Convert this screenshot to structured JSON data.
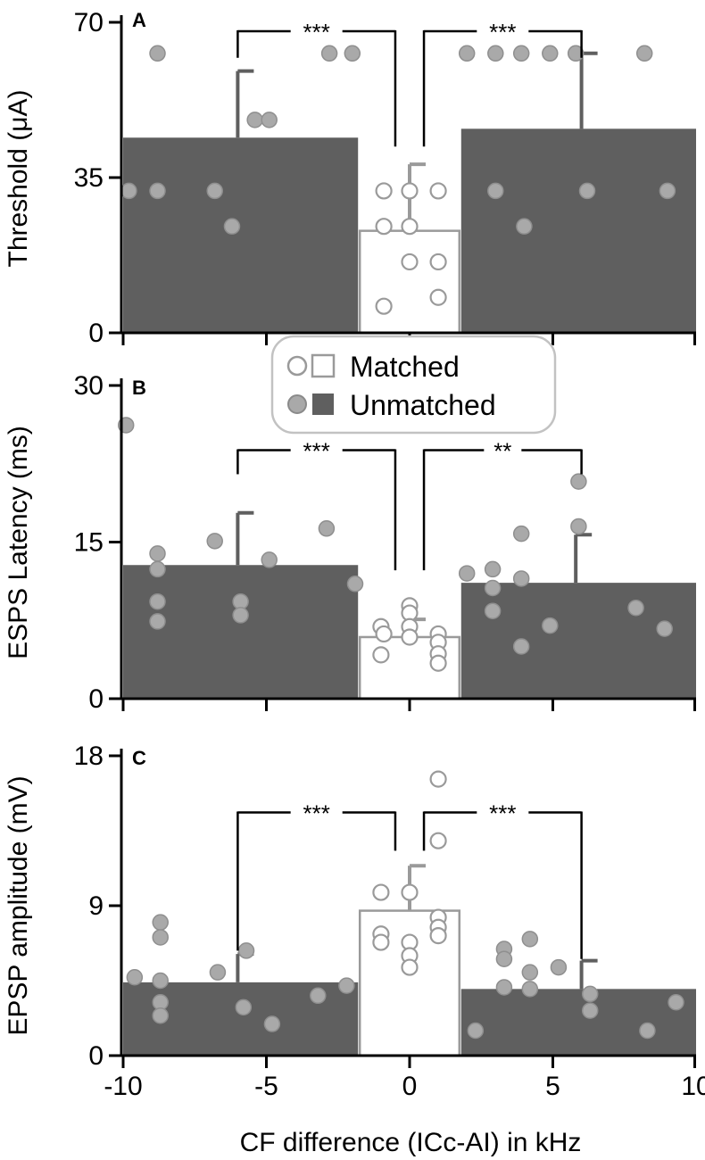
{
  "colors": {
    "unmatched_bar": "#5f5f5f",
    "unmatched_dot": "#a9a9a9",
    "matched_bar": "#ffffff",
    "matched_outline": "#9a9a9a",
    "axis": "#000000"
  },
  "legend": {
    "items": [
      {
        "label": "Matched",
        "style": "matched"
      },
      {
        "label": "Unmatched",
        "style": "unmatched"
      }
    ],
    "placement": "top-center (between panels A and B)"
  },
  "xaxis": {
    "label": "CF difference (ICc-AI) in kHz",
    "ticks": [
      -10,
      -5,
      0,
      5,
      10
    ],
    "tick_labels": [
      "-10",
      "-5",
      "0",
      "5",
      "10"
    ],
    "range": [
      -10,
      10
    ]
  },
  "chart_data": [
    {
      "panel": "A",
      "type": "bar",
      "ylabel": "Threshold (μA)",
      "ylim": [
        0,
        70
      ],
      "yticks": [
        0,
        35,
        70
      ],
      "ytick_labels": [
        "0",
        "35",
        "70"
      ],
      "bars": [
        {
          "group": "Unmatched",
          "x_from": -10,
          "x_to": -1.8,
          "mean": 44,
          "err_x": -6,
          "err_top": 59
        },
        {
          "group": "Matched",
          "x_from": -1.8,
          "x_to": 1.8,
          "mean": 23,
          "err_x": 0,
          "err_top": 38
        },
        {
          "group": "Unmatched",
          "x_from": 1.8,
          "x_to": 10,
          "mean": 46,
          "err_x": 6,
          "err_top": 63
        }
      ],
      "points": {
        "Unmatched": [
          [
            -8.8,
            63
          ],
          [
            -2.8,
            63
          ],
          [
            -2,
            63
          ],
          [
            -5.4,
            48
          ],
          [
            -4.9,
            48
          ],
          [
            -9.8,
            32
          ],
          [
            -8.8,
            32
          ],
          [
            -6.8,
            32
          ],
          [
            -6.2,
            24
          ],
          [
            2,
            63
          ],
          [
            3,
            63
          ],
          [
            3.9,
            63
          ],
          [
            4.9,
            63
          ],
          [
            5.8,
            63
          ],
          [
            8.2,
            63
          ],
          [
            3,
            32
          ],
          [
            4,
            24
          ],
          [
            6.2,
            32
          ],
          [
            9,
            32
          ]
        ],
        "Matched": [
          [
            -0.9,
            32
          ],
          [
            0,
            32
          ],
          [
            1,
            32
          ],
          [
            -0.9,
            24
          ],
          [
            0,
            24
          ],
          [
            0,
            16
          ],
          [
            1,
            16
          ],
          [
            -0.9,
            6
          ],
          [
            1,
            8
          ]
        ]
      },
      "significance": [
        {
          "label": "***",
          "x_left": -6,
          "x_right": -0.5,
          "y": 68,
          "y_left_end": 62,
          "y_right_end": 42
        },
        {
          "label": "***",
          "x_left": 0.5,
          "x_right": 6,
          "y": 68,
          "y_left_end": 42,
          "y_right_end": 62
        }
      ]
    },
    {
      "panel": "B",
      "type": "bar",
      "ylabel": "ESPS Latency (ms)",
      "ylim": [
        0,
        30
      ],
      "yticks": [
        0,
        15,
        30
      ],
      "ytick_labels": [
        "0",
        "15",
        "30"
      ],
      "bars": [
        {
          "group": "Unmatched",
          "x_from": -10,
          "x_to": -1.8,
          "mean": 12.8,
          "err_x": -6,
          "err_top": 17.8
        },
        {
          "group": "Matched",
          "x_from": -1.8,
          "x_to": 1.8,
          "mean": 5.9,
          "err_x": 0,
          "err_top": 7.6
        },
        {
          "group": "Unmatched",
          "x_from": 1.8,
          "x_to": 10,
          "mean": 11.1,
          "err_x": 5.8,
          "err_top": 15.7
        }
      ],
      "points": {
        "Unmatched": [
          [
            -9.9,
            26.2
          ],
          [
            -8.8,
            13.9
          ],
          [
            -8.8,
            12.4
          ],
          [
            -8.8,
            9.3
          ],
          [
            -8.8,
            7.4
          ],
          [
            -6.8,
            15.1
          ],
          [
            -5.9,
            9.3
          ],
          [
            -5.9,
            8
          ],
          [
            -4.9,
            13.3
          ],
          [
            -2.9,
            16.3
          ],
          [
            -1.9,
            11
          ],
          [
            2,
            12
          ],
          [
            2.9,
            12.4
          ],
          [
            2.9,
            10.6
          ],
          [
            2.9,
            8.4
          ],
          [
            3.9,
            15.8
          ],
          [
            3.9,
            11.5
          ],
          [
            3.9,
            5
          ],
          [
            4.9,
            7
          ],
          [
            5.9,
            20.8
          ],
          [
            5.9,
            16.5
          ],
          [
            7.9,
            8.7
          ],
          [
            8.9,
            6.7
          ]
        ],
        "Matched": [
          [
            -1,
            6.9
          ],
          [
            -0.9,
            6.2
          ],
          [
            -1,
            4.2
          ],
          [
            0,
            8.9
          ],
          [
            0,
            8.2
          ],
          [
            0,
            6.9
          ],
          [
            0,
            5.9
          ],
          [
            1,
            6.2
          ],
          [
            1,
            5.4
          ],
          [
            1,
            4.3
          ],
          [
            1,
            3.4
          ]
        ]
      },
      "significance": [
        {
          "label": "***",
          "x_left": -6,
          "x_right": -0.5,
          "y": 23.8,
          "y_left_end": 21.5,
          "y_right_end": 12.3
        },
        {
          "label": "**",
          "x_left": 0.5,
          "x_right": 6,
          "y": 23.8,
          "y_left_end": 12.3,
          "y_right_end": 21.5
        }
      ]
    },
    {
      "panel": "C",
      "type": "bar",
      "ylabel": "EPSP amplitude  (mV)",
      "ylim": [
        0,
        18
      ],
      "yticks": [
        0,
        9,
        18
      ],
      "ytick_labels": [
        "0",
        "9",
        "18"
      ],
      "bars": [
        {
          "group": "Unmatched",
          "x_from": -10,
          "x_to": -1.8,
          "mean": 4.4,
          "err_x": -6,
          "err_top": 6.1
        },
        {
          "group": "Matched",
          "x_from": -1.8,
          "x_to": 1.8,
          "mean": 8.7,
          "err_x": 0,
          "err_top": 11.4
        },
        {
          "group": "Unmatched",
          "x_from": 1.8,
          "x_to": 10,
          "mean": 4.0,
          "err_x": 6,
          "err_top": 5.7
        }
      ],
      "points": {
        "Unmatched": [
          [
            -9.6,
            4.7
          ],
          [
            -8.7,
            8
          ],
          [
            -8.7,
            7.1
          ],
          [
            -8.7,
            4.5
          ],
          [
            -8.7,
            3.2
          ],
          [
            -8.7,
            2.4
          ],
          [
            -6.7,
            5
          ],
          [
            -5.7,
            6.3
          ],
          [
            -5.8,
            2.9
          ],
          [
            -4.8,
            1.9
          ],
          [
            -3.2,
            3.6
          ],
          [
            -2.2,
            4.2
          ],
          [
            2.3,
            1.5
          ],
          [
            3.3,
            6.4
          ],
          [
            3.3,
            5.8
          ],
          [
            3.3,
            4.1
          ],
          [
            4.2,
            7
          ],
          [
            4.2,
            5
          ],
          [
            4.2,
            4
          ],
          [
            5.2,
            5.3
          ],
          [
            6.3,
            3.7
          ],
          [
            6.3,
            2.7
          ],
          [
            8.3,
            1.5
          ],
          [
            9.3,
            3.2
          ]
        ],
        "Matched": [
          [
            -1,
            9.8
          ],
          [
            -1,
            7.3
          ],
          [
            -1,
            6.8
          ],
          [
            0,
            9.8
          ],
          [
            0,
            6.8
          ],
          [
            0,
            6
          ],
          [
            0,
            5.3
          ],
          [
            1,
            16.6
          ],
          [
            1,
            12.9
          ],
          [
            1,
            8.3
          ],
          [
            1,
            7.7
          ],
          [
            1,
            7.2
          ]
        ]
      },
      "significance": [
        {
          "label": "***",
          "x_left": -6,
          "x_right": -0.5,
          "y": 14.6,
          "y_left_end": 6.3,
          "y_right_end": 12.3
        },
        {
          "label": "***",
          "x_left": 0.5,
          "x_right": 6,
          "y": 14.6,
          "y_left_end": 12.3,
          "y_right_end": 5.8
        }
      ]
    }
  ]
}
